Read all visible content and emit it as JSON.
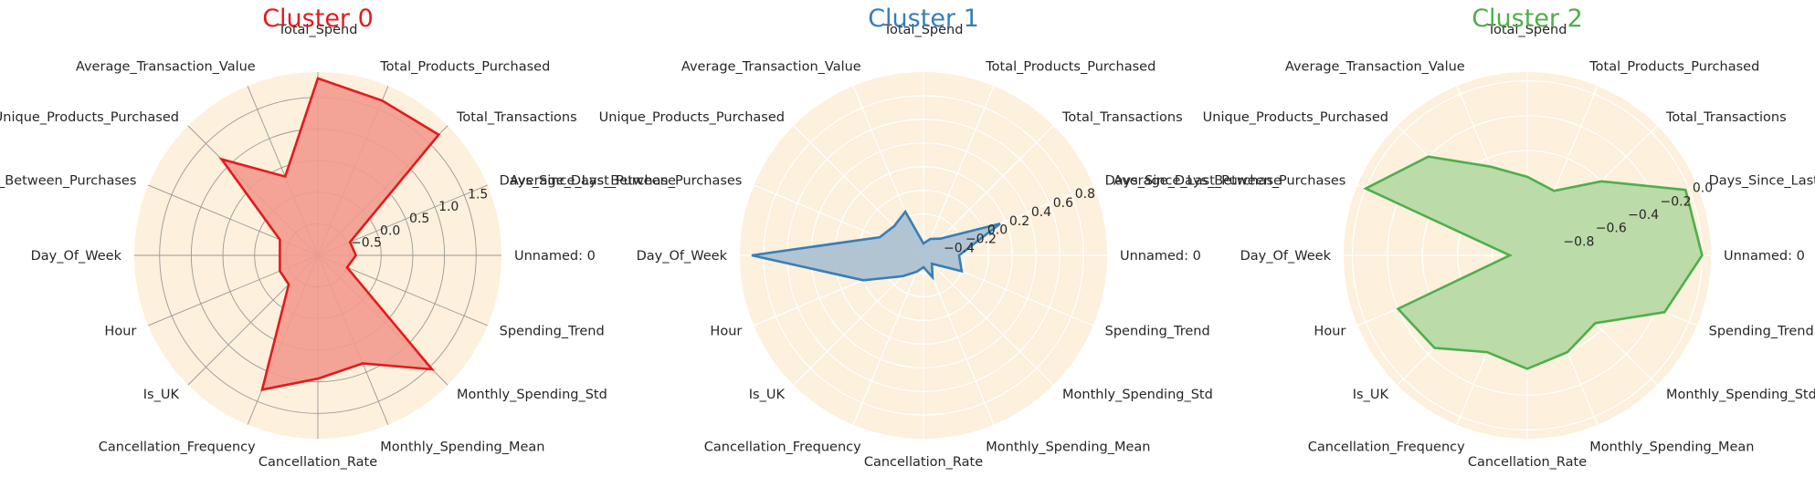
{
  "chart_data": [
    {
      "type": "radar",
      "title": "Cluster 0",
      "color": "#e41a1c",
      "fill_color": "#f29b8f",
      "tick_values": [
        -0.5,
        0.0,
        0.5,
        1.0,
        1.5
      ],
      "tick_labels": [
        "−0.5",
        "0.0",
        "0.5",
        "1.0",
        "1.5"
      ],
      "rlim": [
        -1.0,
        1.9
      ],
      "categories": [
        "Unnamed: 0",
        "Days_Since_Last_Purchase",
        "Total_Transactions",
        "Total_Products_Purchased",
        "Total_Spend",
        "Average_Transaction_Value",
        "Unique_Products_Purchased",
        "Average_Days_Between_Purchases",
        "Day_Of_Week",
        "Hour",
        "Is_UK",
        "Cancellation_Frequency",
        "Cancellation_Rate",
        "Monthly_Spending_Mean",
        "Monthly_Spending_Std",
        "Spending_Trend"
      ],
      "values": [
        -0.4,
        -0.45,
        1.7,
        1.65,
        1.8,
        0.35,
        1.15,
        -0.35,
        -0.4,
        -0.35,
        -0.35,
        1.3,
        0.95,
        0.85,
        1.55,
        -0.5
      ]
    },
    {
      "type": "radar",
      "title": "Cluster 1",
      "color": "#377eb8",
      "fill_color": "#a9bfd0",
      "tick_values": [
        -0.4,
        -0.2,
        0.0,
        0.2,
        0.4,
        0.6,
        0.8
      ],
      "tick_labels": [
        "−0.4",
        "−0.2",
        "0.0",
        "0.2",
        "0.4",
        "0.6",
        "0.8"
      ],
      "rlim": [
        -0.55,
        1.0
      ],
      "categories": [
        "Unnamed: 0",
        "Days_Since_Last_Purchase",
        "Total_Transactions",
        "Total_Products_Purchased",
        "Total_Spend",
        "Average_Transaction_Value",
        "Unique_Products_Purchased",
        "Average_Days_Between_Purchases",
        "Day_Of_Week",
        "Hour",
        "Is_UK",
        "Cancellation_Frequency",
        "Cancellation_Rate",
        "Monthly_Spending_Mean",
        "Monthly_Spending_Std",
        "Spending_Trend"
      ],
      "values": [
        -0.25,
        0.15,
        -0.35,
        -0.4,
        -0.45,
        -0.15,
        -0.2,
        -0.15,
        0.9,
        0.0,
        -0.3,
        -0.4,
        -0.45,
        -0.35,
        -0.45,
        -0.2
      ]
    },
    {
      "type": "radar",
      "title": "Cluster 2",
      "color": "#4daf4a",
      "fill_color": "#b4d8a2",
      "tick_values": [
        -0.8,
        -0.6,
        -0.4,
        -0.2,
        0.0
      ],
      "tick_labels": [
        "−0.8",
        "−0.6",
        "−0.4",
        "−0.2",
        "0.0"
      ],
      "rlim": [
        -1.0,
        0.05
      ],
      "categories": [
        "Unnamed: 0",
        "Days_Since_Last_Purchase",
        "Total_Transactions",
        "Total_Products_Purchased",
        "Total_Spend",
        "Average_Transaction_Value",
        "Unique_Products_Purchased",
        "Average_Days_Between_Purchases",
        "Day_Of_Week",
        "Hour",
        "Is_UK",
        "Cancellation_Frequency",
        "Cancellation_Rate",
        "Monthly_Spending_Mean",
        "Monthly_Spending_Std",
        "Spending_Trend"
      ],
      "values": [
        0.0,
        -0.02,
        -0.4,
        -0.6,
        -0.55,
        -0.45,
        -0.2,
        0.0,
        -0.9,
        -0.2,
        -0.25,
        -0.4,
        -0.35,
        -0.4,
        -0.45,
        -0.15
      ]
    }
  ]
}
